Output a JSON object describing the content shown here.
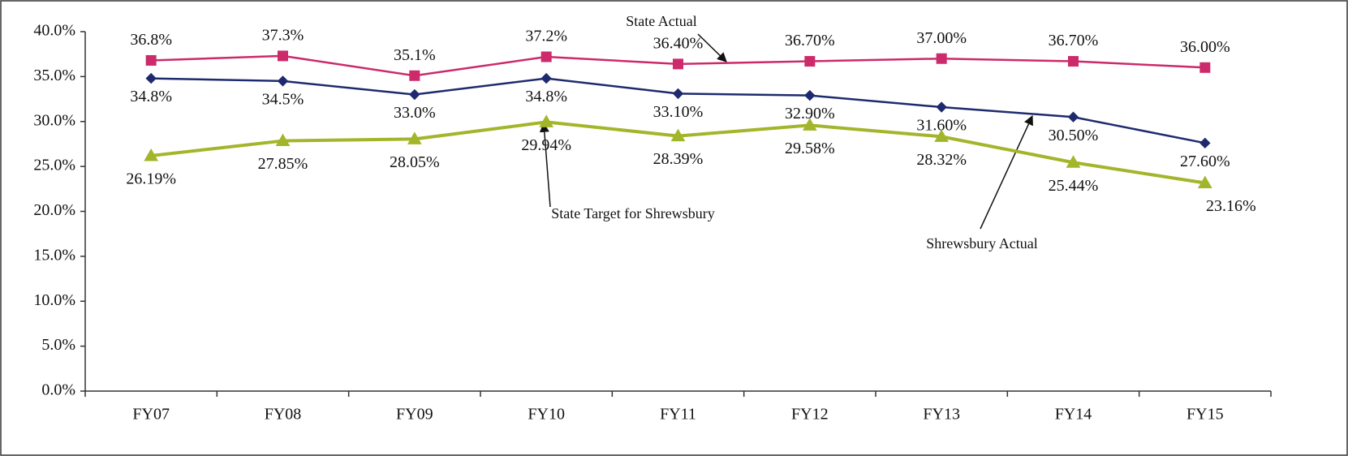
{
  "chart_data": {
    "type": "line",
    "categories": [
      "FY07",
      "FY08",
      "FY09",
      "FY10",
      "FY11",
      "FY12",
      "FY13",
      "FY14",
      "FY15"
    ],
    "series": [
      {
        "name": "State Actual",
        "color": "#cc2a6a",
        "marker": "square",
        "values": [
          36.8,
          37.3,
          35.1,
          37.2,
          36.4,
          36.7,
          37.0,
          36.7,
          36.0
        ],
        "value_labels": [
          "36.8%",
          "37.3%",
          "35.1%",
          "37.2%",
          "36.40%",
          "36.70%",
          "37.00%",
          "36.70%",
          "36.00%"
        ]
      },
      {
        "name": "Shrewsbury Actual",
        "color": "#1f2a6e",
        "marker": "diamond",
        "values": [
          34.8,
          34.5,
          33.0,
          34.8,
          33.1,
          32.9,
          31.6,
          30.5,
          27.6
        ],
        "value_labels": [
          "34.8%",
          "34.5%",
          "33.0%",
          "34.8%",
          "33.10%",
          "32.90%",
          "31.60%",
          "30.50%",
          "27.60%"
        ]
      },
      {
        "name": "State Target for Shrewsbury",
        "color": "#a3b52a",
        "marker": "triangle",
        "values": [
          26.19,
          27.85,
          28.05,
          29.94,
          28.39,
          29.58,
          28.32,
          25.44,
          23.16
        ],
        "value_labels": [
          "26.19%",
          "27.85%",
          "28.05%",
          "29.94%",
          "28.39%",
          "29.58%",
          "28.32%",
          "25.44%",
          "23.16%"
        ]
      }
    ],
    "ylim": [
      0,
      40
    ],
    "yticks": [
      {
        "value": 0,
        "label": "0.0%"
      },
      {
        "value": 5,
        "label": "5.0%"
      },
      {
        "value": 10,
        "label": "10.0%"
      },
      {
        "value": 15,
        "label": "15.0%"
      },
      {
        "value": 20,
        "label": "20.0%"
      },
      {
        "value": 25,
        "label": "25.0%"
      },
      {
        "value": 30,
        "label": "30.0%"
      },
      {
        "value": 35,
        "label": "35.0%"
      },
      {
        "value": 40,
        "label": "40.0%"
      }
    ],
    "grid": false
  }
}
